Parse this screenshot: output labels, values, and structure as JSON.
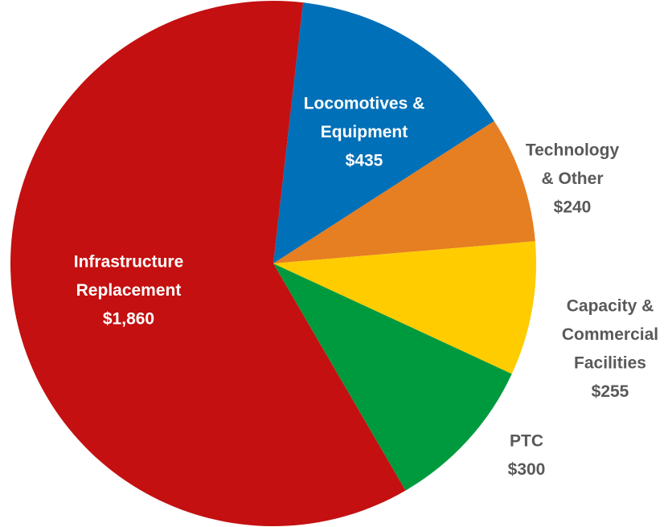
{
  "chart_data": {
    "type": "pie",
    "categories": [
      [
        "Locomotives &",
        "Equipment"
      ],
      [
        "Technology",
        "& Other"
      ],
      [
        "Capacity &",
        "Commercial",
        "Facilities"
      ],
      [
        "PTC"
      ],
      [
        "Infrastructure",
        "Replacement"
      ]
    ],
    "values": [
      435,
      240,
      255,
      300,
      1860
    ],
    "value_labels": [
      "$435",
      "$240",
      "$255",
      "$300",
      "$1,860"
    ],
    "colors": [
      "#0070b8",
      "#e67e22",
      "#ffcc00",
      "#009a3e",
      "#c41010"
    ]
  }
}
